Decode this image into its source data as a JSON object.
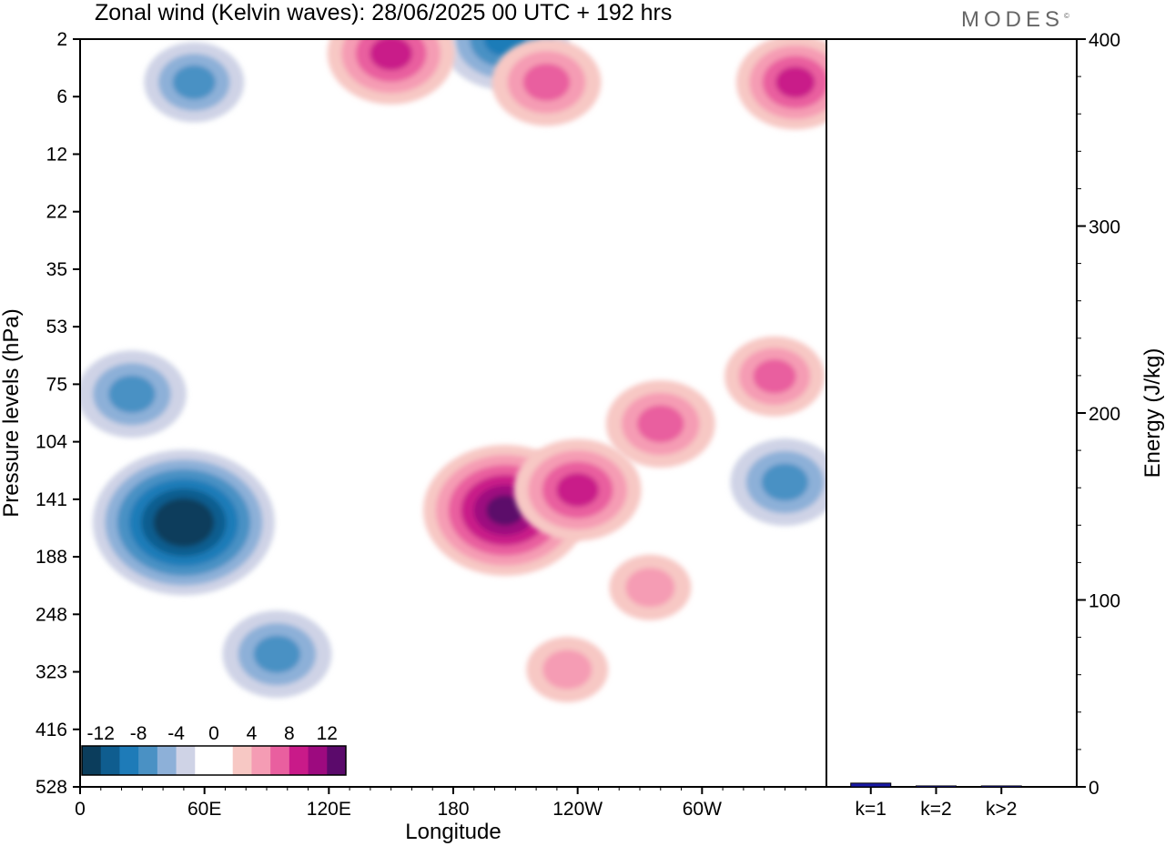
{
  "header": {
    "title": "Zonal wind (Kelvin waves):  28/06/2025  00 UTC  + 192 hrs",
    "logo": "MODES",
    "logo_mark": "©"
  },
  "chart_data": [
    {
      "type": "heatmap",
      "title": "Zonal wind (Kelvin waves):  28/06/2025  00 UTC  + 192 hrs",
      "xlabel": "Longitude",
      "ylabel": "Pressure levels (hPa)",
      "x_ticks": [
        "0",
        "60E",
        "120E",
        "180",
        "120W",
        "60W"
      ],
      "y_ticks": [
        "2",
        "6",
        "12",
        "22",
        "35",
        "53",
        "75",
        "104",
        "141",
        "188",
        "248",
        "323",
        "416",
        "528"
      ],
      "colorbar": {
        "labels": [
          "-12",
          "-8",
          "-4",
          "0",
          "4",
          "8",
          "12"
        ],
        "levels": [
          -14,
          -12,
          -10,
          -8,
          -6,
          -4,
          -2,
          0,
          2,
          4,
          6,
          8,
          10,
          12,
          14
        ],
        "colors": [
          "#0b3d5c",
          "#0f5d8f",
          "#1e7bb8",
          "#4a91c4",
          "#8db0d8",
          "#cfd3e6",
          "#ffffff",
          "#ffffff",
          "#f7c8c4",
          "#f59cb4",
          "#e95f9f",
          "#c91a89",
          "#9d0a7f",
          "#5b0a6b"
        ]
      },
      "features": [
        {
          "lon": 205,
          "lev": 150,
          "value": 12,
          "sign": "positive"
        },
        {
          "lon": 240,
          "lev": 135,
          "value": 8,
          "sign": "positive"
        },
        {
          "lon": 280,
          "lev": 95,
          "value": 6,
          "sign": "positive"
        },
        {
          "lon": 335,
          "lev": 72,
          "value": 5,
          "sign": "positive"
        },
        {
          "lon": 50,
          "lev": 160,
          "value": -14,
          "sign": "negative"
        },
        {
          "lon": 95,
          "lev": 300,
          "value": -6,
          "sign": "negative"
        },
        {
          "lon": 25,
          "lev": 80,
          "value": -6,
          "sign": "negative"
        },
        {
          "lon": 340,
          "lev": 130,
          "value": -6,
          "sign": "negative"
        },
        {
          "lon": 205,
          "lev": 2,
          "value": -8,
          "sign": "negative"
        },
        {
          "lon": 55,
          "lev": 5,
          "value": -5,
          "sign": "negative"
        },
        {
          "lon": 225,
          "lev": 5,
          "value": 6,
          "sign": "positive"
        },
        {
          "lon": 345,
          "lev": 5,
          "value": 7,
          "sign": "positive"
        },
        {
          "lon": 150,
          "lev": 3,
          "value": 8,
          "sign": "positive"
        },
        {
          "lon": 235,
          "lev": 320,
          "value": 3,
          "sign": "positive"
        },
        {
          "lon": 275,
          "lev": 220,
          "value": 3,
          "sign": "positive"
        }
      ]
    },
    {
      "type": "bar",
      "ylabel": "Energy (J/kg)",
      "categories": [
        "k=1",
        "k=2",
        "k>2"
      ],
      "values": [
        2,
        0.5,
        0.5
      ],
      "ylim": [
        0,
        400
      ],
      "y_ticks": [
        "0",
        "100",
        "200",
        "300",
        "400"
      ],
      "bar_color": "#1a1aa8"
    }
  ]
}
